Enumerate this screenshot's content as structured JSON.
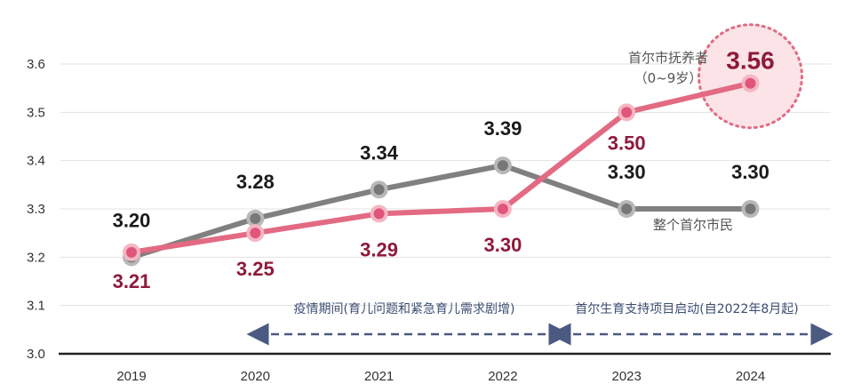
{
  "chart_data": {
    "type": "line",
    "x": [
      "2019",
      "2020",
      "2021",
      "2022",
      "2023",
      "2024"
    ],
    "series": [
      {
        "name": "整个首尔市民",
        "values": [
          3.2,
          3.28,
          3.34,
          3.39,
          3.3,
          3.3
        ],
        "labels": [
          "3.20",
          "3.28",
          "3.34",
          "3.39",
          "3.30",
          "3.30"
        ],
        "color": "#808080"
      },
      {
        "name": "首尔市抚养者（0-9岁）",
        "name_lines": [
          "首尔市抚养者",
          "（0~9岁）"
        ],
        "values": [
          3.21,
          3.25,
          3.29,
          3.3,
          3.5,
          3.56
        ],
        "labels": [
          "3.21",
          "3.25",
          "3.29",
          "3.30",
          "3.50",
          "3.56"
        ],
        "color": "#e26a82"
      }
    ],
    "yticks": [
      "3.0",
      "3.1",
      "3.2",
      "3.3",
      "3.4",
      "3.5",
      "3.6"
    ],
    "ylim": [
      3.0,
      3.6
    ],
    "grid": true,
    "annotations": [
      {
        "text": "疫情期间(育儿问题和紧急育儿需求剧增)",
        "from": "2020",
        "to": "2022"
      },
      {
        "text": "首尔生育支持项目启动(自2022年8月起)",
        "from": "2022",
        "to": "2024"
      }
    ],
    "highlight": "2024"
  }
}
